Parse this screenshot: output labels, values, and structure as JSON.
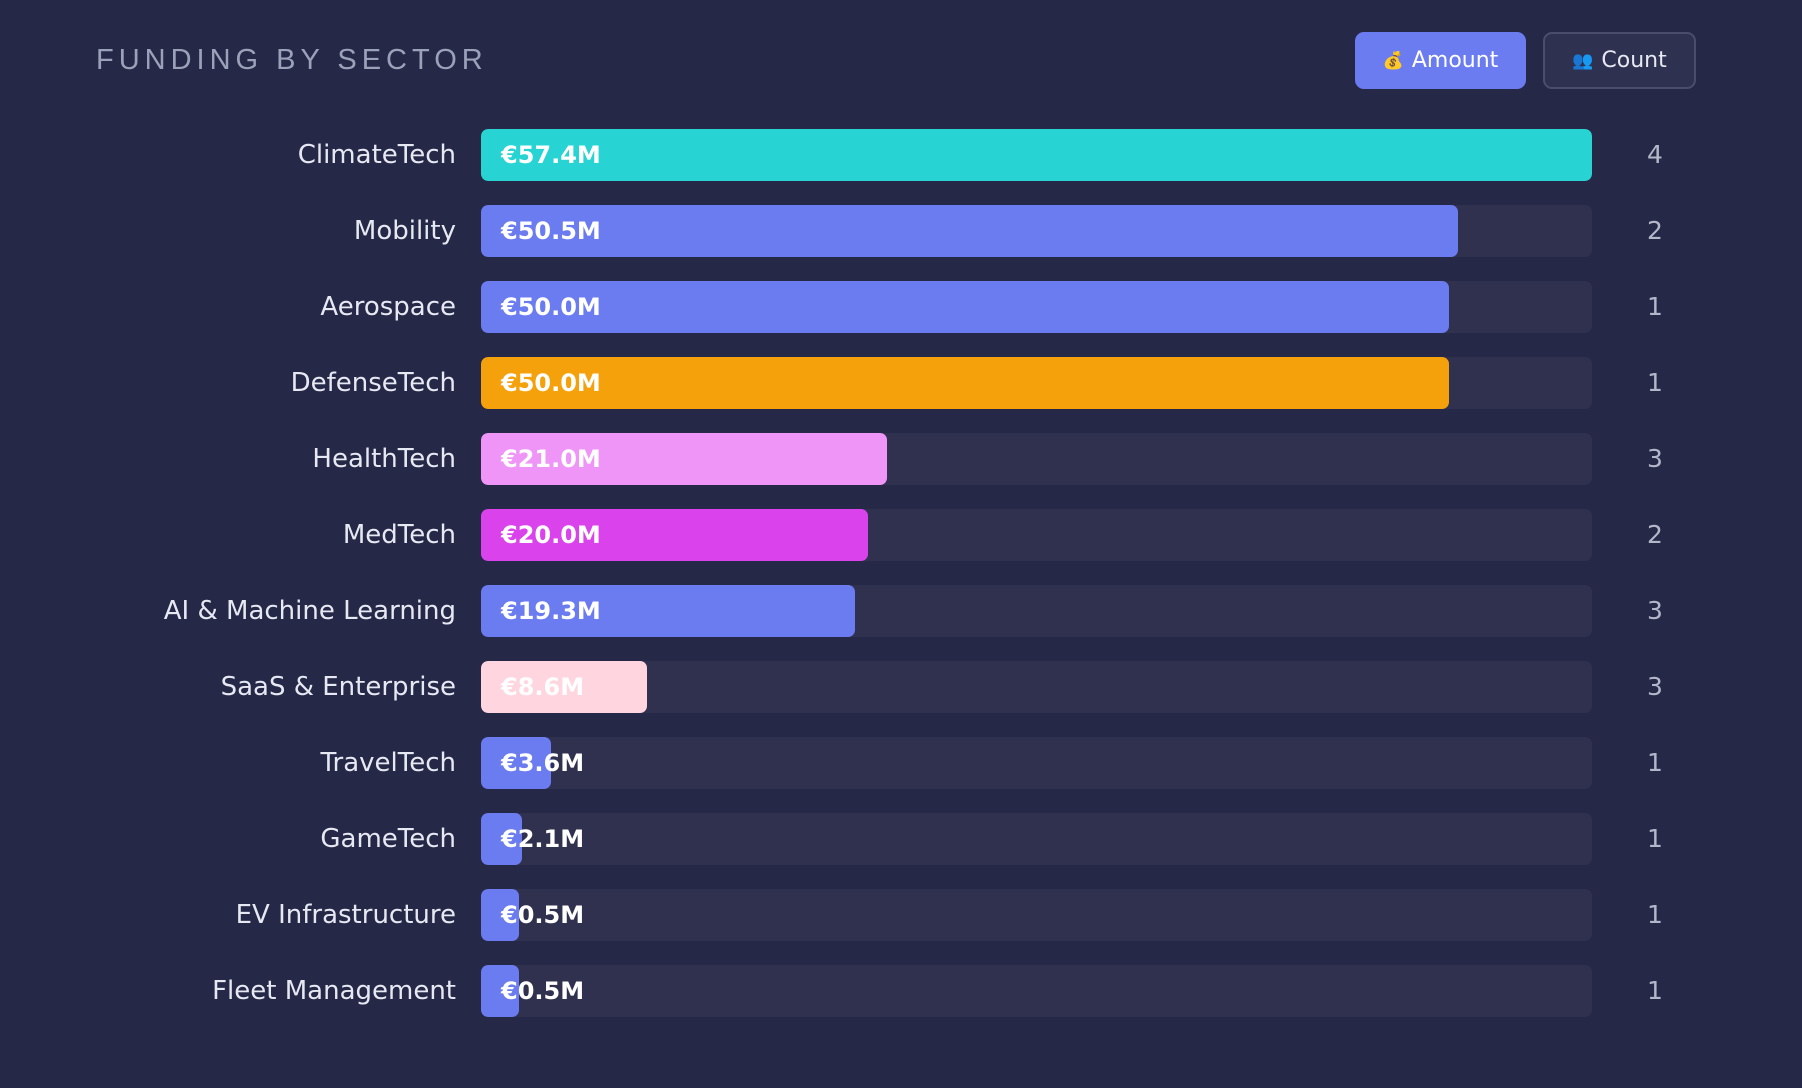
{
  "header": {
    "title": "FUNDING BY SECTOR",
    "toggle_amount": {
      "icon": "money-bag-icon",
      "glyph": "💰",
      "label": "Amount",
      "active": true
    },
    "toggle_count": {
      "icon": "people-icon",
      "glyph": "👥",
      "label": "Count",
      "active": false
    }
  },
  "colors": {
    "background": "#262848",
    "track": "#30314f",
    "accent": "#6b7cf0"
  },
  "chart_data": {
    "type": "bar",
    "orientation": "horizontal",
    "title": "FUNDING BY SECTOR",
    "unit": "€M",
    "xlim": [
      0,
      57.4
    ],
    "grid": false,
    "legend": "none",
    "categories": [
      "ClimateTech",
      "Mobility",
      "Aerospace",
      "DefenseTech",
      "HealthTech",
      "MedTech",
      "AI & Machine Learning",
      "SaaS & Enterprise",
      "TravelTech",
      "GameTech",
      "EV Infrastructure",
      "Fleet Management"
    ],
    "values": [
      57.4,
      50.5,
      50.0,
      50.0,
      21.0,
      20.0,
      19.3,
      8.6,
      3.6,
      2.1,
      0.5,
      0.5
    ],
    "value_labels": [
      "€57.4M",
      "€50.5M",
      "€50.0M",
      "€50.0M",
      "€21.0M",
      "€20.0M",
      "€19.3M",
      "€8.6M",
      "€3.6M",
      "€2.1M",
      "€0.5M",
      "€0.5M"
    ],
    "counts": [
      4,
      2,
      1,
      1,
      3,
      2,
      3,
      3,
      1,
      1,
      1,
      1
    ],
    "bar_colors": [
      "#27d3d3",
      "#6b7cf0",
      "#6b7cf0",
      "#f4a10b",
      "#f095f8",
      "#da43ec",
      "#6b7cf0",
      "#ffd6e0",
      "#6b7cf0",
      "#6b7cf0",
      "#6b7cf0",
      "#6b7cf0"
    ]
  }
}
